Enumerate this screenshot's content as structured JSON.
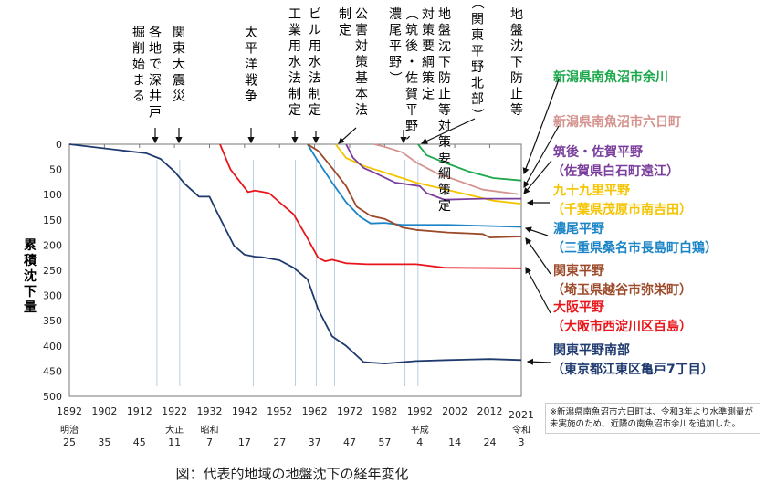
{
  "chart_data": {
    "type": "line",
    "title": "図：代表的地域の地盤沈下の経年変化",
    "ylabel": "累積沈下量",
    "xlabel": "",
    "ylim": [
      0,
      500
    ],
    "y_inverted": true,
    "xlim": [
      1892,
      2021
    ],
    "y_ticks": [
      "0",
      "50",
      "100",
      "150",
      "200",
      "250",
      "300",
      "350",
      "400",
      "450",
      "500"
    ],
    "x_ticks": [
      {
        "year": 1892,
        "label": "1892",
        "era": "明治",
        "era_year": "25"
      },
      {
        "year": 1902,
        "label": "1902",
        "era": "",
        "era_year": "35"
      },
      {
        "year": 1912,
        "label": "1912",
        "era": "",
        "era_year": "45"
      },
      {
        "year": 1922,
        "label": "1922",
        "era": "大正",
        "era_year": "11"
      },
      {
        "year": 1932,
        "label": "1932",
        "era": "昭和",
        "era_year": "7"
      },
      {
        "year": 1942,
        "label": "1942",
        "era": "",
        "era_year": "17"
      },
      {
        "year": 1952,
        "label": "1952",
        "era": "",
        "era_year": "27"
      },
      {
        "year": 1962,
        "label": "1962",
        "era": "",
        "era_year": "37"
      },
      {
        "year": 1972,
        "label": "1972",
        "era": "",
        "era_year": "47"
      },
      {
        "year": 1982,
        "label": "1982",
        "era": "",
        "era_year": "57"
      },
      {
        "year": 1992,
        "label": "1992",
        "era": "平成",
        "era_year": "4"
      },
      {
        "year": 2002,
        "label": "2002",
        "era": "",
        "era_year": "14"
      },
      {
        "year": 2012,
        "label": "2012",
        "era": "",
        "era_year": "24"
      },
      {
        "year": 2021,
        "label": "2021",
        "era": "令和",
        "era_year": "3"
      }
    ],
    "event_lines": [
      1917,
      1923.5,
      1944.5,
      1956.5,
      1962.5,
      1967.7,
      1987.8,
      1991.5
    ],
    "grid": false,
    "series": [
      {
        "name": "関東平野南部",
        "sub": "（東京都江東区亀戸7丁目）",
        "color": "#1f3a6e",
        "x": [
          1892,
          1909,
          1914,
          1918,
          1922,
          1925,
          1929,
          1932,
          1934,
          1937,
          1939,
          1942,
          1945,
          1947,
          1952,
          1956,
          1960,
          1963,
          1967,
          1971,
          1976,
          1982,
          1991,
          2000,
          2012,
          2021
        ],
        "values": [
          0,
          14,
          18,
          29,
          54,
          79,
          104,
          104,
          133,
          174,
          201,
          219,
          223,
          224,
          230,
          245,
          268,
          327,
          381,
          400,
          432,
          435,
          430,
          428,
          426,
          428
        ]
      },
      {
        "name": "大阪平野",
        "sub": "（大阪市西淀川区百島）",
        "color": "#e8161b",
        "x": [
          1935,
          1938,
          1943,
          1945,
          1949,
          1952,
          1956,
          1960,
          1963,
          1965,
          1967,
          1971,
          1977,
          1991,
          1999,
          2021
        ],
        "values": [
          0,
          50,
          95,
          92,
          97,
          115,
          139,
          187,
          225,
          232,
          229,
          236,
          238,
          238,
          245,
          246
        ]
      },
      {
        "name": "濃尾平野",
        "sub": "（三重県桑名市長島町白鶏）",
        "color": "#1b84c6",
        "x": [
          1960,
          1963,
          1967,
          1971,
          1975,
          1978,
          1982,
          1987,
          2000,
          2021
        ],
        "values": [
          0,
          34,
          76,
          115,
          144,
          157,
          156,
          160,
          160,
          164
        ]
      },
      {
        "name": "関東平野",
        "sub": "（埼玉県越谷市弥栄町）",
        "color": "#9c4a2a",
        "x": [
          1960,
          1963,
          1967,
          1971,
          1974,
          1978,
          1982,
          1987,
          1991,
          2000,
          2010,
          2012,
          2021
        ],
        "values": [
          0,
          13,
          47,
          83,
          124,
          142,
          148,
          165,
          170,
          175,
          178,
          185,
          183
        ]
      },
      {
        "name": "九十九里平野",
        "sub": "（千葉県茂原市南吉田）",
        "color": "#f5c400",
        "x": [
          1968,
          1971,
          1976,
          1982,
          1991,
          2002,
          2013,
          2021
        ],
        "values": [
          0,
          27,
          43,
          56,
          76,
          94,
          112,
          118
        ]
      },
      {
        "name": "筑後・佐賀平野",
        "sub": "（佐賀県白石町遠江）",
        "color": "#7a3d9c",
        "x": [
          1971,
          1973,
          1976,
          1979,
          1985,
          1992,
          1994,
          1999,
          2010,
          2021
        ],
        "values": [
          0,
          27,
          47,
          56,
          76,
          83,
          97,
          110,
          108,
          108
        ]
      },
      {
        "name": "新潟県南魚沼市六日町",
        "sub": "",
        "color": "#d4938e",
        "x": [
          1979,
          1982,
          1987,
          1991,
          1997,
          2002,
          2010,
          2020
        ],
        "values": [
          0,
          5,
          16,
          36,
          58,
          70,
          90,
          99
        ]
      },
      {
        "name": "新潟県南魚沼市余川",
        "sub": "",
        "color": "#1aa84b",
        "x": [
          1991.5,
          1994,
          1999,
          2006,
          2013,
          2021
        ],
        "values": [
          0,
          22,
          36,
          54,
          67,
          72
        ]
      }
    ]
  },
  "annotations": [
    {
      "text": "掘削始まる",
      "year": null
    },
    {
      "text": "各地で深井戸",
      "year": 1917
    },
    {
      "text": "関東大震災",
      "year": 1923.5
    },
    {
      "text": "太平洋戦争",
      "year": 1944.5
    },
    {
      "text": "工業用水法制定",
      "year": 1956.5
    },
    {
      "text": "ビル用水法制定",
      "year": 1962.5
    },
    {
      "text": "公害対策基本法",
      "year": 1967.7
    },
    {
      "text": "制定",
      "year": null
    },
    {
      "text": "濃尾平野）",
      "year": null
    },
    {
      "text": "（筑後・佐賀平野、",
      "year": null
    },
    {
      "text": "地盤沈下防止等対策要綱策定",
      "year": 1987.8
    },
    {
      "text": "対策要綱策定",
      "year": null
    },
    {
      "text": "（関東平野北部）",
      "year": 1991.5
    },
    {
      "text": "地盤沈下防止等",
      "year": null
    }
  ],
  "note": "※新潟県南魚沼市六日町は、令和3年より水準測量が未実施のため、近隣の南魚沼市余川を追加した。",
  "caption": "図：代表的地域の地盤沈下の経年変化"
}
